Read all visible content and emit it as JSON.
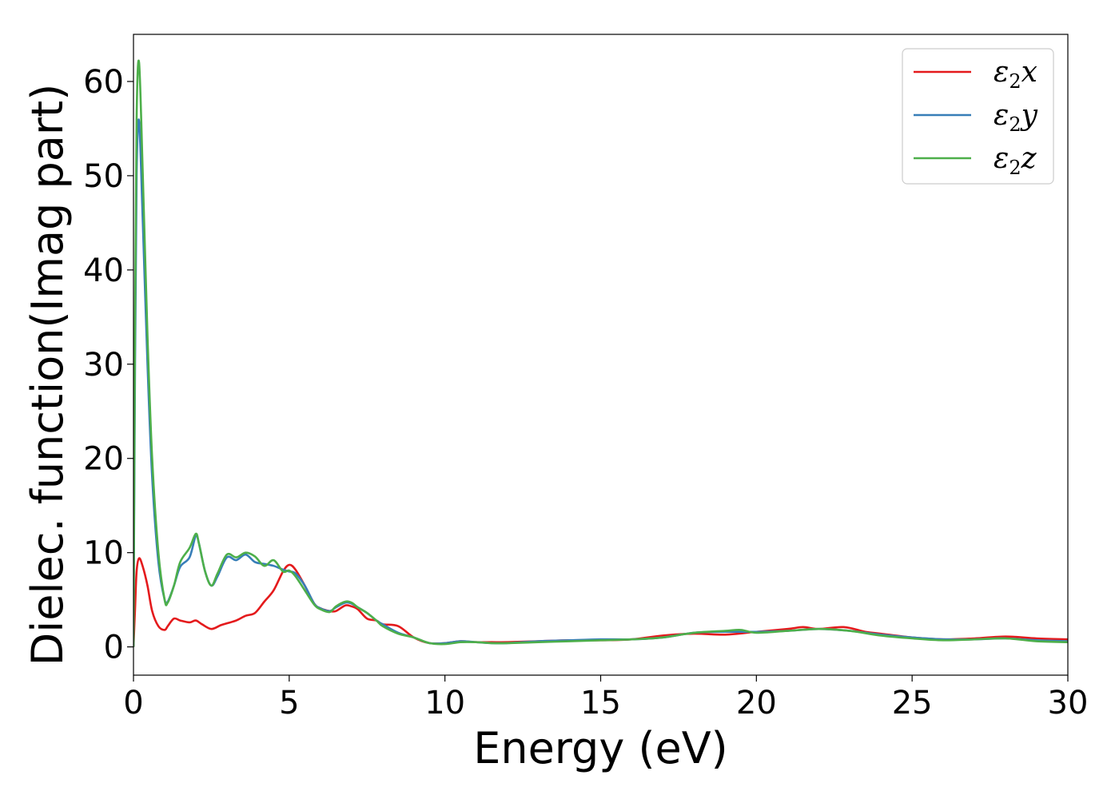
{
  "chart_data": {
    "type": "line",
    "xlabel": "Energy (eV)",
    "ylabel": "Dielec. function(Imag part)",
    "xlim": [
      0,
      30
    ],
    "ylim": [
      -3,
      65
    ],
    "xticks": [
      0,
      5,
      10,
      15,
      20,
      25,
      30
    ],
    "yticks": [
      0,
      10,
      20,
      30,
      40,
      50,
      60
    ],
    "grid": false,
    "legend_position": "top-right",
    "series": [
      {
        "name": "ε2x",
        "legend_base": "ε",
        "legend_sub": "2",
        "legend_var": "x",
        "color": "#e41a1c",
        "x": [
          0,
          0.05,
          0.1,
          0.18,
          0.3,
          0.45,
          0.6,
          0.8,
          1.0,
          1.1,
          1.3,
          1.5,
          1.8,
          2.0,
          2.2,
          2.5,
          2.8,
          3.0,
          3.3,
          3.6,
          3.9,
          4.2,
          4.5,
          4.8,
          5.0,
          5.2,
          5.5,
          5.8,
          6.0,
          6.3,
          6.5,
          6.8,
          7.0,
          7.2,
          7.5,
          7.8,
          8.0,
          8.5,
          9.0,
          9.5,
          10.0,
          10.5,
          11.0,
          11.5,
          12.0,
          13.0,
          14.0,
          15.0,
          16.0,
          17.0,
          18.0,
          19.0,
          20.0,
          21.0,
          21.5,
          22.0,
          22.8,
          23.5,
          24.0,
          25.0,
          26.0,
          27.0,
          28.0,
          29.0,
          30.0
        ],
        "values": [
          0,
          4.0,
          8.0,
          9.4,
          8.5,
          6.5,
          3.8,
          2.2,
          1.8,
          2.2,
          3.0,
          2.8,
          2.6,
          2.8,
          2.4,
          1.9,
          2.3,
          2.5,
          2.8,
          3.3,
          3.6,
          4.8,
          6.0,
          8.0,
          8.7,
          8.2,
          6.5,
          4.6,
          4.1,
          3.8,
          3.8,
          4.4,
          4.3,
          4.0,
          3.0,
          2.8,
          2.4,
          2.2,
          1.0,
          0.4,
          0.4,
          0.6,
          0.5,
          0.5,
          0.5,
          0.6,
          0.7,
          0.7,
          0.8,
          1.2,
          1.4,
          1.3,
          1.6,
          1.9,
          2.1,
          1.9,
          2.1,
          1.6,
          1.4,
          1.0,
          0.8,
          0.9,
          1.1,
          0.9,
          0.8
        ]
      },
      {
        "name": "ε2y",
        "legend_base": "ε",
        "legend_sub": "2",
        "legend_var": "y",
        "color": "#377eb8",
        "x": [
          0,
          0.05,
          0.1,
          0.18,
          0.3,
          0.45,
          0.6,
          0.8,
          1.0,
          1.1,
          1.3,
          1.5,
          1.8,
          2.0,
          2.1,
          2.3,
          2.5,
          2.7,
          3.0,
          3.3,
          3.6,
          3.9,
          4.2,
          4.5,
          4.8,
          5.0,
          5.2,
          5.5,
          5.8,
          6.0,
          6.3,
          6.5,
          6.8,
          7.0,
          7.2,
          7.5,
          7.8,
          8.0,
          8.5,
          9.0,
          9.5,
          10.0,
          10.5,
          11.0,
          11.5,
          12.0,
          13.0,
          14.0,
          15.0,
          16.0,
          17.0,
          18.0,
          19.0,
          20.0,
          21.0,
          22.0,
          23.0,
          24.0,
          25.0,
          26.0,
          27.0,
          28.0,
          29.0,
          30.0
        ],
        "values": [
          0,
          30.0,
          50.0,
          55.8,
          45.0,
          30.0,
          18.0,
          9.0,
          5.0,
          4.8,
          6.5,
          8.5,
          9.5,
          11.8,
          11.0,
          8.0,
          6.5,
          7.5,
          9.5,
          9.2,
          9.8,
          9.0,
          8.8,
          8.6,
          8.2,
          8.0,
          7.8,
          6.5,
          4.6,
          4.1,
          3.8,
          4.2,
          4.7,
          4.6,
          4.2,
          3.6,
          2.8,
          2.4,
          1.5,
          1.0,
          0.4,
          0.4,
          0.6,
          0.5,
          0.4,
          0.4,
          0.6,
          0.7,
          0.8,
          0.8,
          1.0,
          1.5,
          1.6,
          1.6,
          1.7,
          1.9,
          1.7,
          1.3,
          1.0,
          0.8,
          0.8,
          0.9,
          0.7,
          0.6
        ]
      },
      {
        "name": "ε2z",
        "legend_base": "ε",
        "legend_sub": "2",
        "legend_var": "z",
        "color": "#4daf4a",
        "x": [
          0,
          0.05,
          0.1,
          0.18,
          0.3,
          0.45,
          0.6,
          0.8,
          1.0,
          1.1,
          1.3,
          1.5,
          1.8,
          2.0,
          2.1,
          2.3,
          2.5,
          2.7,
          3.0,
          3.3,
          3.6,
          3.9,
          4.2,
          4.5,
          4.8,
          5.0,
          5.2,
          5.5,
          5.8,
          6.0,
          6.3,
          6.5,
          6.8,
          7.0,
          7.2,
          7.5,
          7.8,
          8.0,
          8.5,
          9.0,
          9.5,
          10.0,
          10.5,
          11.0,
          11.5,
          12.0,
          13.0,
          14.0,
          15.0,
          16.0,
          17.0,
          18.0,
          19.0,
          19.5,
          20.0,
          21.0,
          22.0,
          23.0,
          24.0,
          25.0,
          26.0,
          27.0,
          28.0,
          29.0,
          30.0
        ],
        "values": [
          0,
          35.0,
          56.0,
          62.0,
          50.0,
          33.0,
          20.0,
          10.0,
          5.0,
          4.7,
          6.5,
          9.0,
          10.5,
          12.0,
          11.0,
          8.0,
          6.5,
          7.8,
          9.8,
          9.5,
          10.0,
          9.6,
          8.6,
          9.2,
          8.0,
          8.1,
          7.5,
          6.0,
          4.5,
          4.0,
          3.7,
          4.3,
          4.8,
          4.7,
          4.2,
          3.6,
          2.8,
          2.2,
          1.4,
          1.0,
          0.4,
          0.3,
          0.5,
          0.5,
          0.4,
          0.4,
          0.5,
          0.6,
          0.7,
          0.8,
          1.0,
          1.5,
          1.7,
          1.8,
          1.5,
          1.7,
          1.9,
          1.7,
          1.2,
          0.9,
          0.7,
          0.8,
          0.9,
          0.6,
          0.5
        ]
      }
    ]
  }
}
